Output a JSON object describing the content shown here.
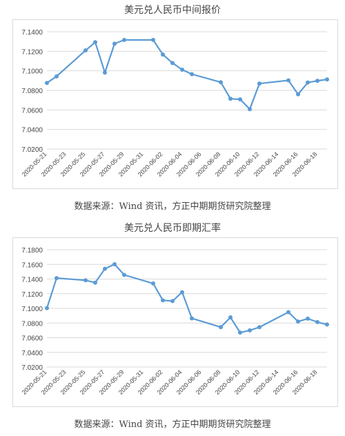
{
  "chart_data": [
    {
      "type": "line",
      "title": "美元兑人民币中间报价",
      "source": "数据来源：Wind 资讯，方正中期期货研究院整理",
      "ylim": [
        7.02,
        7.14
      ],
      "yticks": [
        "7.1400",
        "7.1200",
        "7.1000",
        "7.0800",
        "7.0600",
        "7.0400",
        "7.0200"
      ],
      "ytick_values": [
        7.14,
        7.12,
        7.1,
        7.08,
        7.06,
        7.04,
        7.02
      ],
      "xticks": [
        "2020-05-21",
        "2020-05-23",
        "2020-05-25",
        "2020-05-27",
        "2020-05-29",
        "2020-05-31",
        "2020-06-02",
        "2020-06-04",
        "2020-06-06",
        "2020-06-08",
        "2020-06-10",
        "2020-06-12",
        "2020-06-14",
        "2020-06-16",
        "2020-06-18"
      ],
      "grid": "horizontal",
      "color": "#5b9bd5",
      "x": [
        "2020-05-21",
        "2020-05-22",
        "2020-05-25",
        "2020-05-26",
        "2020-05-27",
        "2020-05-28",
        "2020-05-29",
        "2020-06-01",
        "2020-06-02",
        "2020-06-03",
        "2020-06-04",
        "2020-06-05",
        "2020-06-08",
        "2020-06-09",
        "2020-06-10",
        "2020-06-11",
        "2020-06-12",
        "2020-06-15",
        "2020-06-16",
        "2020-06-17",
        "2020-06-18",
        "2020-06-19"
      ],
      "values": [
        7.0876,
        7.0943,
        7.1209,
        7.1293,
        7.0982,
        7.1277,
        7.1316,
        7.1316,
        7.1167,
        7.108,
        7.1012,
        7.0966,
        7.0883,
        7.0714,
        7.0708,
        7.0608,
        7.087,
        7.0902,
        7.076,
        7.088,
        7.0898,
        7.0912
      ]
    },
    {
      "type": "line",
      "title": "美元兑人民币即期汇率",
      "source": "数据来源：Wind 资讯，方正中期期货研究院整理",
      "ylim": [
        7.02,
        7.18
      ],
      "yticks": [
        "7.1800",
        "7.1600",
        "7.1400",
        "7.1200",
        "7.1000",
        "7.0800",
        "7.0600",
        "7.0400",
        "7.0200"
      ],
      "ytick_values": [
        7.18,
        7.16,
        7.14,
        7.12,
        7.1,
        7.08,
        7.06,
        7.04,
        7.02
      ],
      "xticks": [
        "2020-05-21",
        "2020-05-23",
        "2020-05-25",
        "2020-05-27",
        "2020-05-29",
        "2020-05-31",
        "2020-06-02",
        "2020-06-04",
        "2020-06-06",
        "2020-06-08",
        "2020-06-10",
        "2020-06-12",
        "2020-06-14",
        "2020-06-16",
        "2020-06-18"
      ],
      "grid": "horizontal",
      "color": "#5b9bd5",
      "x": [
        "2020-05-21",
        "2020-05-22",
        "2020-05-25",
        "2020-05-26",
        "2020-05-27",
        "2020-05-28",
        "2020-05-29",
        "2020-06-01",
        "2020-06-02",
        "2020-06-03",
        "2020-06-04",
        "2020-06-05",
        "2020-06-08",
        "2020-06-09",
        "2020-06-10",
        "2020-06-11",
        "2020-06-12",
        "2020-06-15",
        "2020-06-16",
        "2020-06-17",
        "2020-06-18",
        "2020-06-19"
      ],
      "values": [
        7.1003,
        7.1413,
        7.1383,
        7.1351,
        7.154,
        7.1602,
        7.1456,
        7.134,
        7.111,
        7.11,
        7.122,
        7.0864,
        7.0744,
        7.0878,
        7.067,
        7.07,
        7.0744,
        7.0948,
        7.082,
        7.086,
        7.0813,
        7.078
      ]
    }
  ]
}
